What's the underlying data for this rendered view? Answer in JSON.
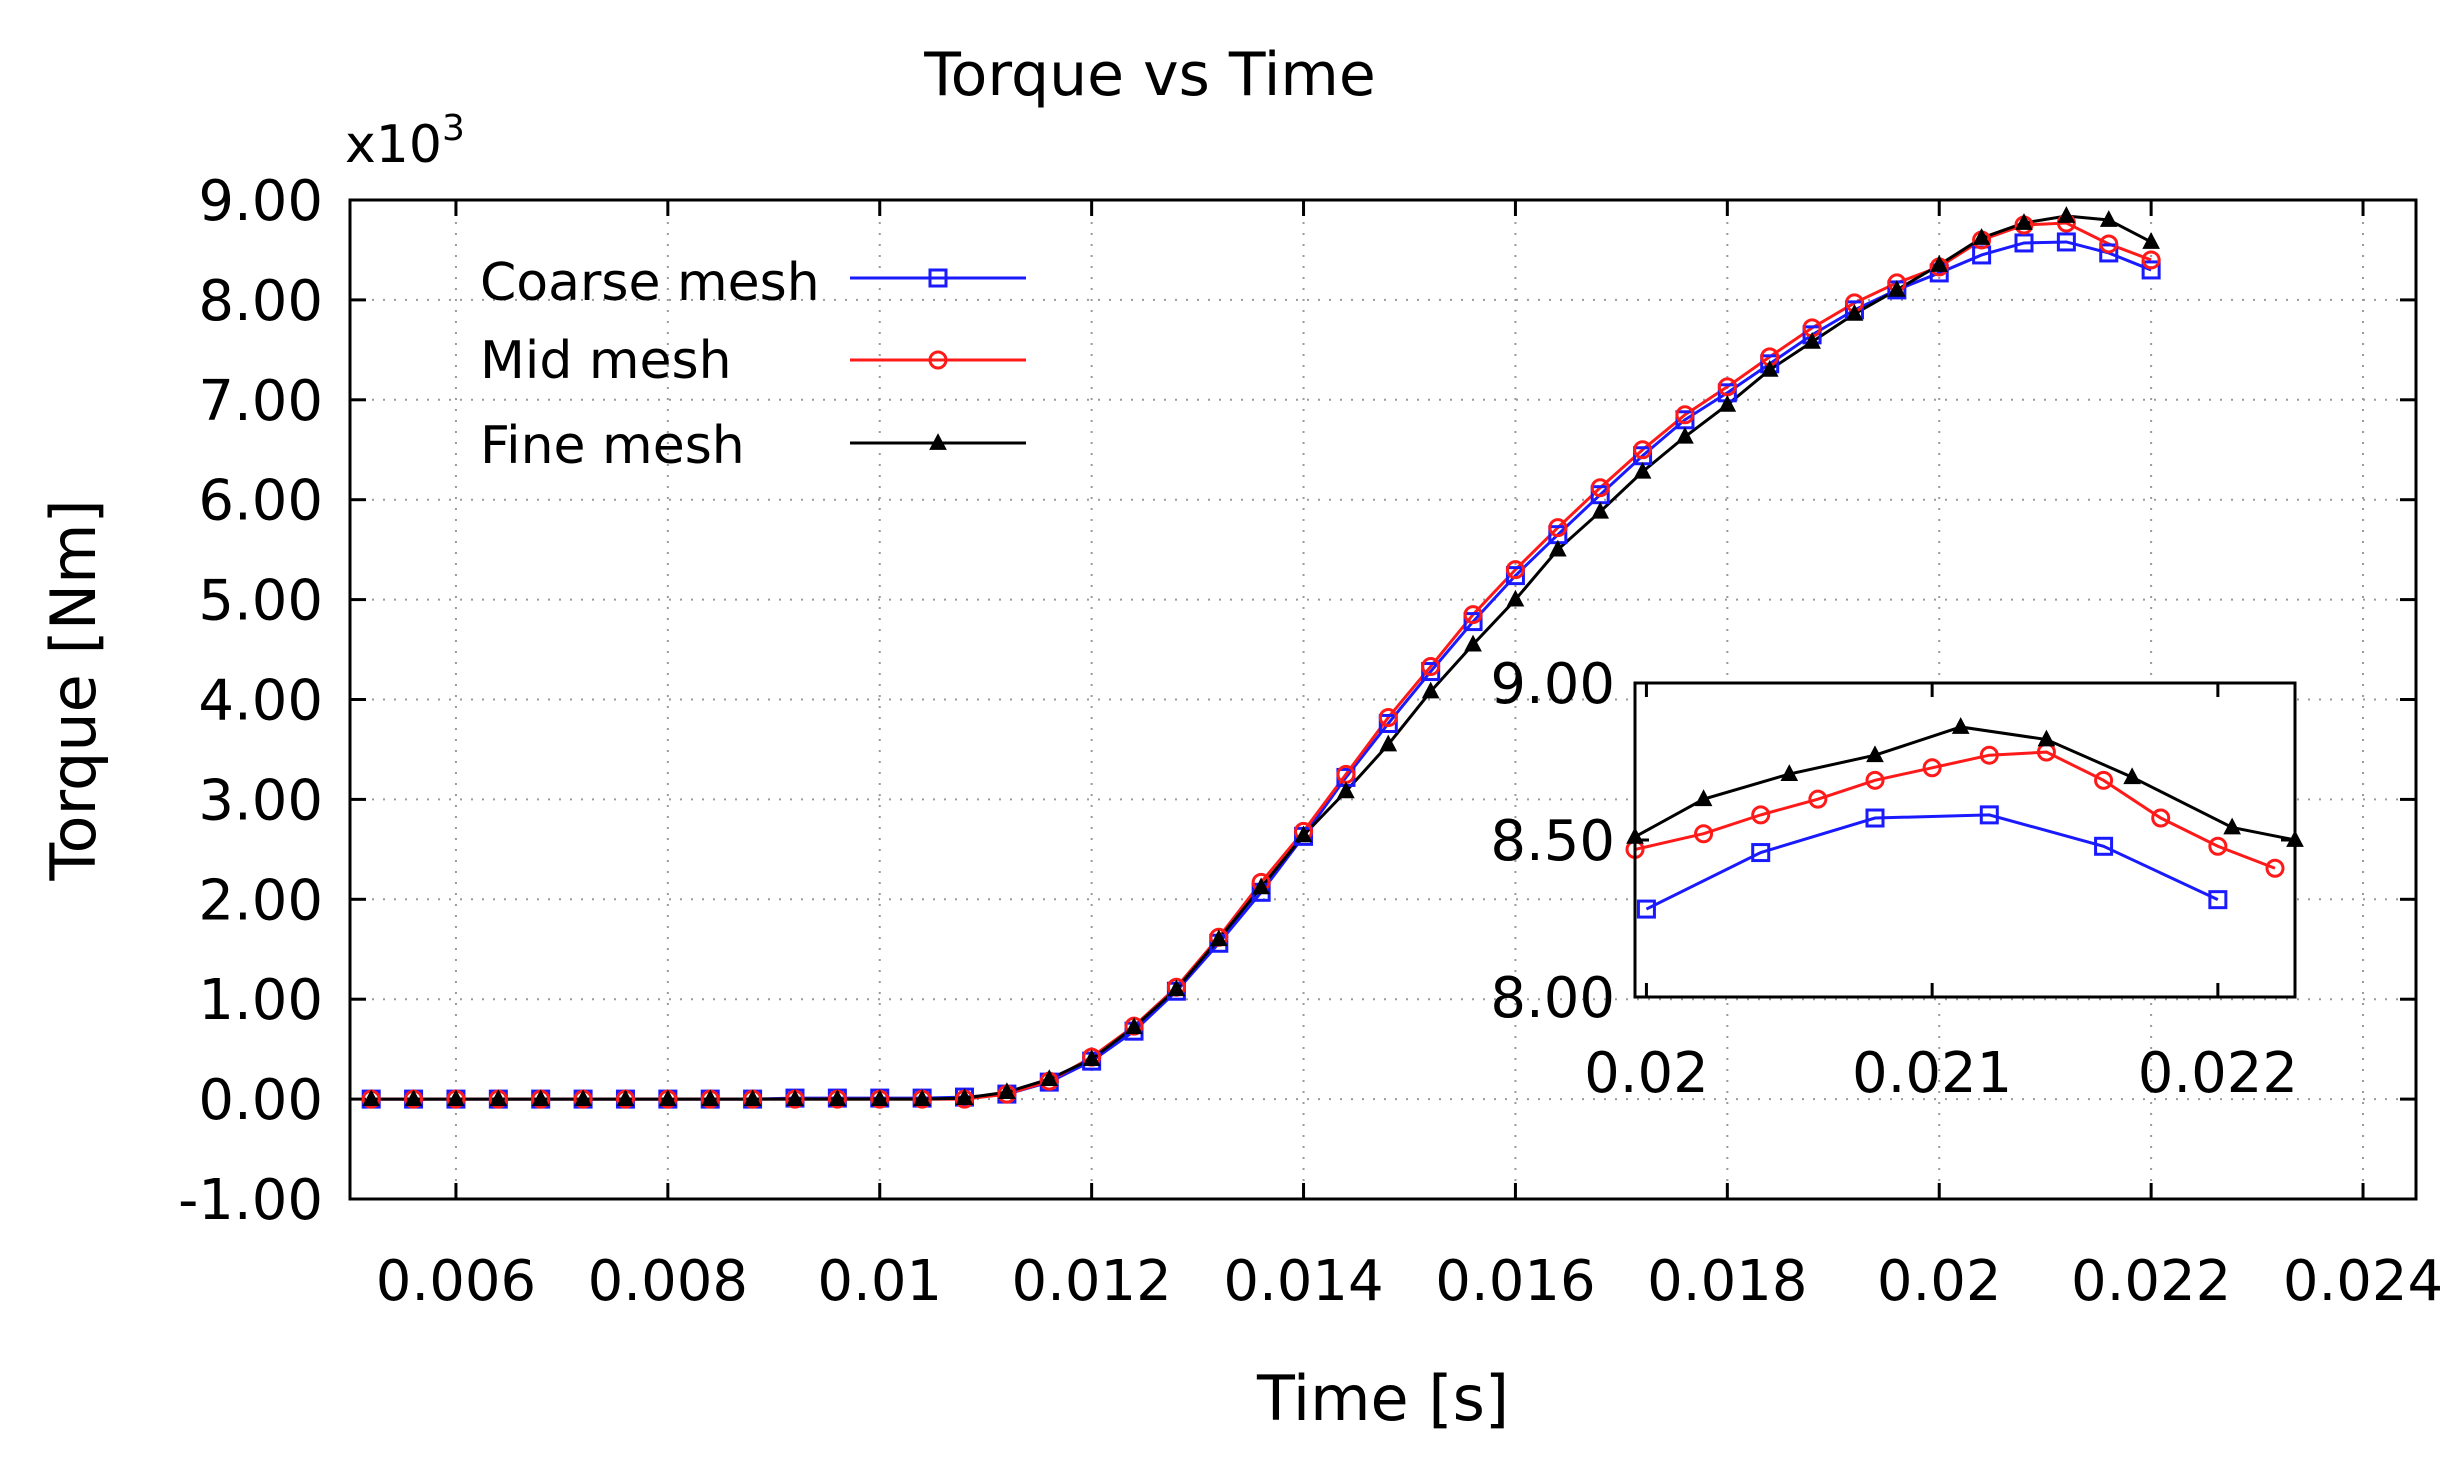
{
  "chart_data": {
    "type": "line",
    "title": "Torque vs Time",
    "xlabel": "Time [s]",
    "ylabel": "Torque [Nm]",
    "y_multiplier_label": "x10",
    "y_multiplier_exponent": "3",
    "xlim": [
      0.005,
      0.0245
    ],
    "ylim": [
      -1.0,
      9.0
    ],
    "x_ticks": [
      0.006,
      0.008,
      0.01,
      0.012,
      0.014,
      0.016,
      0.018,
      0.02,
      0.022,
      0.024
    ],
    "x_tick_labels": [
      "0.006",
      "0.008",
      "0.01",
      "0.012",
      "0.014",
      "0.016",
      "0.018",
      "0.02",
      "0.022",
      "0.024"
    ],
    "y_ticks": [
      -1,
      0,
      1,
      2,
      3,
      4,
      5,
      6,
      7,
      8,
      9
    ],
    "y_tick_labels": [
      "-1.00",
      "0.00",
      "1.00",
      "2.00",
      "3.00",
      "4.00",
      "5.00",
      "6.00",
      "7.00",
      "8.00",
      "9.00"
    ],
    "grid": true,
    "legend_position": "top-left",
    "series": [
      {
        "name": "Coarse mesh",
        "color": "#1a1aff",
        "marker": "square",
        "x": [
          0.0052,
          0.0056,
          0.006,
          0.0064,
          0.0068,
          0.0072,
          0.0076,
          0.008,
          0.0084,
          0.0088,
          0.0092,
          0.0096,
          0.01,
          0.0104,
          0.0108,
          0.0112,
          0.0116,
          0.012,
          0.0124,
          0.0128,
          0.0132,
          0.0136,
          0.014,
          0.0144,
          0.0148,
          0.0152,
          0.0156,
          0.016,
          0.0164,
          0.0168,
          0.0172,
          0.0176,
          0.018,
          0.0184,
          0.0188,
          0.0192,
          0.0196,
          0.02,
          0.0204,
          0.0208,
          0.0212,
          0.0216,
          0.022
        ],
        "y": [
          0,
          0,
          0,
          0,
          0,
          0,
          0,
          0,
          0,
          0,
          0.01,
          0.01,
          0.01,
          0.01,
          0.02,
          0.05,
          0.17,
          0.38,
          0.68,
          1.08,
          1.56,
          2.07,
          2.63,
          3.22,
          3.76,
          4.28,
          4.78,
          5.24,
          5.65,
          6.05,
          6.44,
          6.8,
          7.07,
          7.36,
          7.65,
          7.9,
          8.1,
          8.27,
          8.45,
          8.57,
          8.58,
          8.47,
          8.3
        ]
      },
      {
        "name": "Mid mesh",
        "color": "#ff1a1a",
        "marker": "circle",
        "x": [
          0.0052,
          0.0056,
          0.006,
          0.0064,
          0.0068,
          0.0072,
          0.0076,
          0.008,
          0.0084,
          0.0088,
          0.0092,
          0.0096,
          0.01,
          0.0104,
          0.0108,
          0.0112,
          0.0116,
          0.012,
          0.0124,
          0.0128,
          0.0132,
          0.0136,
          0.014,
          0.0144,
          0.0148,
          0.0152,
          0.0156,
          0.016,
          0.0164,
          0.0168,
          0.0172,
          0.0176,
          0.018,
          0.0184,
          0.0188,
          0.0192,
          0.0196,
          0.02,
          0.0204,
          0.0208,
          0.0212,
          0.0216,
          0.022
        ],
        "y": [
          0,
          0,
          0,
          0,
          0,
          0,
          0,
          0,
          0,
          0,
          0,
          0,
          0,
          0,
          0,
          0.05,
          0.18,
          0.42,
          0.73,
          1.12,
          1.62,
          2.17,
          2.68,
          3.25,
          3.82,
          4.33,
          4.85,
          5.3,
          5.72,
          6.12,
          6.5,
          6.85,
          7.13,
          7.43,
          7.72,
          7.97,
          8.17,
          8.33,
          8.6,
          8.75,
          8.77,
          8.56,
          8.4
        ]
      },
      {
        "name": "Fine mesh",
        "color": "#000000",
        "marker": "triangle",
        "x": [
          0.0052,
          0.0056,
          0.006,
          0.0064,
          0.0068,
          0.0072,
          0.0076,
          0.008,
          0.0084,
          0.0088,
          0.0092,
          0.0096,
          0.01,
          0.0104,
          0.0108,
          0.0112,
          0.0116,
          0.012,
          0.0124,
          0.0128,
          0.0132,
          0.0136,
          0.014,
          0.0144,
          0.0148,
          0.0152,
          0.0156,
          0.016,
          0.0164,
          0.0168,
          0.0172,
          0.0176,
          0.018,
          0.0184,
          0.0188,
          0.0192,
          0.0196,
          0.02,
          0.0204,
          0.0208,
          0.0212,
          0.0216,
          0.022
        ],
        "y": [
          0,
          0,
          0,
          0,
          0,
          0,
          0,
          0,
          0,
          0,
          0,
          0,
          0,
          0,
          0.01,
          0.07,
          0.2,
          0.4,
          0.72,
          1.1,
          1.6,
          2.12,
          2.64,
          3.08,
          3.55,
          4.08,
          4.55,
          5.0,
          5.5,
          5.88,
          6.28,
          6.63,
          6.95,
          7.3,
          7.58,
          7.86,
          8.1,
          8.35,
          8.62,
          8.77,
          8.84,
          8.8,
          8.58
        ]
      }
    ],
    "inset": {
      "xlim": [
        0.01996,
        0.02227
      ],
      "ylim": [
        8.0,
        9.0
      ],
      "x_ticks": [
        0.02,
        0.021,
        0.022
      ],
      "x_tick_labels": [
        "0.02",
        "0.021",
        "0.022"
      ],
      "y_ticks": [
        8.0,
        8.5,
        9.0
      ],
      "y_tick_labels": [
        "8.00",
        "8.50",
        "9.00"
      ],
      "series": [
        {
          "name": "Coarse mesh",
          "color": "#1a1aff",
          "marker": "square",
          "x": [
            0.02,
            0.0204,
            0.0208,
            0.0212,
            0.0216,
            0.022
          ],
          "y": [
            8.28,
            8.46,
            8.57,
            8.58,
            8.48,
            8.31
          ]
        },
        {
          "name": "Mid mesh",
          "color": "#ff1a1a",
          "marker": "circle",
          "x": [
            0.01996,
            0.0202,
            0.0204,
            0.0206,
            0.0208,
            0.021,
            0.0212,
            0.0214,
            0.0216,
            0.0218,
            0.022,
            0.0222
          ],
          "y": [
            8.47,
            8.52,
            8.58,
            8.63,
            8.69,
            8.73,
            8.77,
            8.78,
            8.69,
            8.57,
            8.48,
            8.41
          ]
        },
        {
          "name": "Fine mesh",
          "color": "#000000",
          "marker": "triangle",
          "x": [
            0.01996,
            0.0202,
            0.0205,
            0.0208,
            0.0211,
            0.0214,
            0.0217,
            0.02205,
            0.02227
          ],
          "y": [
            8.51,
            8.63,
            8.71,
            8.77,
            8.86,
            8.82,
            8.7,
            8.54,
            8.5
          ]
        }
      ]
    }
  }
}
